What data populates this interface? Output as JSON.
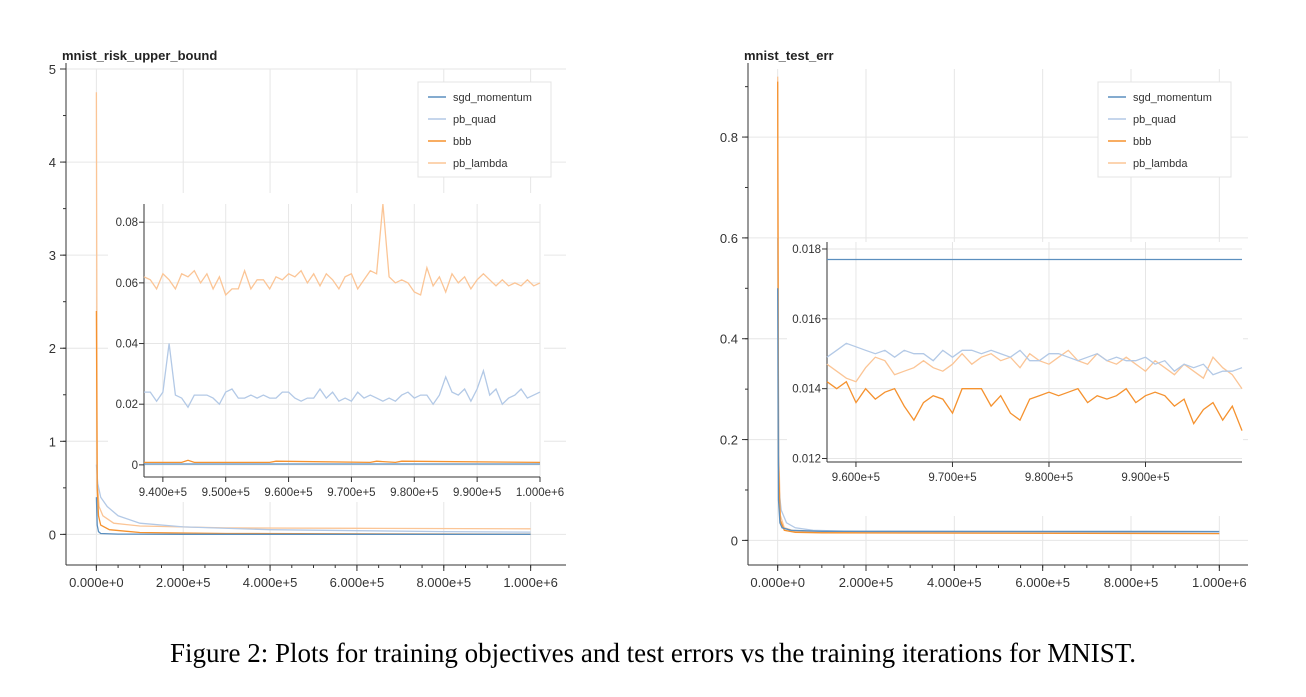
{
  "figure": {
    "caption": "Figure 2: Plots for training objectives and test errors vs the training iterations for MNIST."
  },
  "colors": {
    "sgd_momentum": "#5b8fbf",
    "pb_quad": "#b3c9e6",
    "bbb": "#f5922f",
    "pb_lambda": "#fbc596"
  },
  "chart_data": [
    {
      "type": "line",
      "title": "mnist_risk_upper_bound",
      "xlabel": "",
      "ylabel": "",
      "xlim": [
        -40000,
        1040000
      ],
      "ylim": [
        -0.2,
        5
      ],
      "xticks": [
        0,
        200000,
        400000,
        600000,
        800000,
        1000000
      ],
      "xtick_labels": [
        "0.000e+0",
        "2.000e+5",
        "4.000e+5",
        "6.000e+5",
        "8.000e+5",
        "1.000e+6"
      ],
      "yticks": [
        0,
        1,
        2,
        3,
        4,
        5
      ],
      "ytick_labels": [
        "0",
        "1",
        "2",
        "3",
        "4",
        "5"
      ],
      "grid": true,
      "legend": "top-right",
      "series": [
        {
          "name": "sgd_momentum",
          "x": [
            0,
            2000,
            5000,
            10000,
            50000,
            200000,
            1000000
          ],
          "y": [
            0.4,
            0.1,
            0.03,
            0.01,
            0.003,
            0.001,
            0.001
          ]
        },
        {
          "name": "pb_quad",
          "x": [
            0,
            3000,
            10000,
            25000,
            50000,
            100000,
            200000,
            400000,
            600000,
            800000,
            1000000
          ],
          "y": [
            0.75,
            0.55,
            0.4,
            0.3,
            0.2,
            0.12,
            0.08,
            0.05,
            0.04,
            0.03,
            0.025
          ]
        },
        {
          "name": "bbb",
          "x": [
            0,
            2000,
            5000,
            10000,
            30000,
            100000,
            300000,
            1000000
          ],
          "y": [
            2.4,
            0.5,
            0.2,
            0.1,
            0.05,
            0.02,
            0.01,
            0.002
          ]
        },
        {
          "name": "pb_lambda",
          "x": [
            0,
            2000,
            6000,
            15000,
            40000,
            100000,
            300000,
            600000,
            1000000
          ],
          "y": [
            4.75,
            0.6,
            0.3,
            0.2,
            0.12,
            0.09,
            0.07,
            0.065,
            0.06
          ]
        }
      ],
      "inset": {
        "xlim": [
          937000,
          1000000
        ],
        "ylim": [
          -0.004,
          0.086
        ],
        "xticks": [
          940000,
          950000,
          960000,
          970000,
          980000,
          990000,
          1000000
        ],
        "xtick_labels": [
          "9.400e+5",
          "9.500e+5",
          "9.600e+5",
          "9.700e+5",
          "9.800e+5",
          "9.900e+5",
          "1.000e+6"
        ],
        "yticks": [
          0,
          0.02,
          0.04,
          0.06,
          0.08
        ],
        "ytick_labels": [
          "0",
          "0.02",
          "0.04",
          "0.06",
          "0.08"
        ],
        "series": [
          {
            "name": "sgd_momentum",
            "x": [
              937000,
              1000000
            ],
            "y": [
              0.0003,
              0.0003
            ]
          },
          {
            "name": "pb_quad",
            "x": [
              937000,
              938000,
              939000,
              940000,
              941000,
              942000,
              943000,
              944000,
              945000,
              946000,
              947000,
              948000,
              949000,
              950000,
              951000,
              952000,
              953000,
              954000,
              955000,
              956000,
              957000,
              958000,
              959000,
              960000,
              961000,
              962000,
              963000,
              964000,
              965000,
              966000,
              967000,
              968000,
              969000,
              970000,
              971000,
              972000,
              973000,
              974000,
              975000,
              976000,
              977000,
              978000,
              979000,
              980000,
              981000,
              982000,
              983000,
              984000,
              985000,
              986000,
              987000,
              988000,
              989000,
              990000,
              991000,
              992000,
              993000,
              994000,
              995000,
              996000,
              997000,
              998000,
              999000,
              1000000
            ],
            "y": [
              0.024,
              0.024,
              0.021,
              0.024,
              0.04,
              0.023,
              0.022,
              0.019,
              0.023,
              0.023,
              0.023,
              0.022,
              0.02,
              0.024,
              0.025,
              0.022,
              0.022,
              0.023,
              0.022,
              0.023,
              0.022,
              0.022,
              0.024,
              0.024,
              0.022,
              0.021,
              0.022,
              0.022,
              0.025,
              0.022,
              0.024,
              0.021,
              0.022,
              0.021,
              0.024,
              0.022,
              0.023,
              0.022,
              0.021,
              0.022,
              0.021,
              0.023,
              0.024,
              0.022,
              0.023,
              0.023,
              0.02,
              0.023,
              0.029,
              0.024,
              0.023,
              0.025,
              0.021,
              0.025,
              0.031,
              0.023,
              0.025,
              0.02,
              0.022,
              0.023,
              0.025,
              0.022,
              0.023,
              0.024
            ]
          },
          {
            "name": "bbb",
            "x": [
              937000,
              943000,
              944000,
              945000,
              957000,
              958000,
              973000,
              974000,
              977000,
              978000,
              1000000
            ],
            "y": [
              0.0008,
              0.0008,
              0.0015,
              0.0008,
              0.0008,
              0.0012,
              0.0008,
              0.0012,
              0.0008,
              0.0012,
              0.0008
            ]
          },
          {
            "name": "pb_lambda",
            "x": [
              937000,
              938000,
              939000,
              940000,
              941000,
              942000,
              943000,
              944000,
              945000,
              946000,
              947000,
              948000,
              949000,
              950000,
              951000,
              952000,
              953000,
              954000,
              955000,
              956000,
              957000,
              958000,
              959000,
              960000,
              961000,
              962000,
              963000,
              964000,
              965000,
              966000,
              967000,
              968000,
              969000,
              970000,
              971000,
              972000,
              973000,
              974000,
              975000,
              976000,
              977000,
              978000,
              979000,
              980000,
              981000,
              982000,
              983000,
              984000,
              985000,
              986000,
              987000,
              988000,
              989000,
              990000,
              991000,
              992000,
              993000,
              994000,
              995000,
              996000,
              997000,
              998000,
              999000,
              1000000
            ],
            "y": [
              0.062,
              0.061,
              0.058,
              0.063,
              0.061,
              0.058,
              0.063,
              0.062,
              0.064,
              0.06,
              0.063,
              0.058,
              0.062,
              0.056,
              0.058,
              0.058,
              0.064,
              0.058,
              0.061,
              0.061,
              0.058,
              0.062,
              0.061,
              0.063,
              0.062,
              0.064,
              0.06,
              0.063,
              0.059,
              0.063,
              0.061,
              0.058,
              0.062,
              0.063,
              0.058,
              0.061,
              0.064,
              0.063,
              0.086,
              0.062,
              0.06,
              0.061,
              0.06,
              0.057,
              0.056,
              0.065,
              0.059,
              0.062,
              0.057,
              0.063,
              0.06,
              0.062,
              0.058,
              0.061,
              0.063,
              0.061,
              0.059,
              0.061,
              0.059,
              0.06,
              0.059,
              0.061,
              0.059,
              0.06
            ]
          }
        ]
      }
    },
    {
      "type": "line",
      "title": "mnist_test_err",
      "xlabel": "",
      "ylabel": "",
      "xlim": [
        -40000,
        1040000
      ],
      "ylim": [
        -0.025,
        0.935
      ],
      "xticks": [
        0,
        200000,
        400000,
        600000,
        800000,
        1000000
      ],
      "xtick_labels": [
        "0.000e+0",
        "2.000e+5",
        "4.000e+5",
        "6.000e+5",
        "8.000e+5",
        "1.000e+6"
      ],
      "yticks": [
        0,
        0.2,
        0.4,
        0.6,
        0.8
      ],
      "ytick_labels": [
        "0",
        "0.2",
        "0.4",
        "0.6",
        "0.8"
      ],
      "grid": true,
      "legend": "top-right",
      "series": [
        {
          "name": "sgd_momentum",
          "x": [
            0,
            2000,
            5000,
            10000,
            30000,
            100000,
            1000000
          ],
          "y": [
            0.5,
            0.08,
            0.035,
            0.025,
            0.02,
            0.018,
            0.0177
          ]
        },
        {
          "name": "pb_quad",
          "x": [
            0,
            3000,
            8000,
            20000,
            40000,
            80000,
            200000,
            1000000
          ],
          "y": [
            0.6,
            0.1,
            0.06,
            0.035,
            0.025,
            0.02,
            0.017,
            0.0147
          ]
        },
        {
          "name": "bbb",
          "x": [
            0,
            2000,
            6000,
            15000,
            40000,
            100000,
            1000000
          ],
          "y": [
            0.91,
            0.15,
            0.04,
            0.02,
            0.016,
            0.015,
            0.0135
          ]
        },
        {
          "name": "pb_lambda",
          "x": [
            0,
            2000,
            6000,
            15000,
            40000,
            100000,
            1000000
          ],
          "y": [
            0.92,
            0.2,
            0.05,
            0.025,
            0.018,
            0.016,
            0.0145
          ]
        }
      ],
      "inset": {
        "xlim": [
          957000,
          1000000
        ],
        "ylim": [
          0.0119,
          0.0182
        ],
        "xticks": [
          960000,
          970000,
          980000,
          990000
        ],
        "xtick_labels": [
          "9.600e+5",
          "9.700e+5",
          "9.800e+5",
          "9.900e+5"
        ],
        "yticks": [
          0.012,
          0.014,
          0.016,
          0.018
        ],
        "ytick_labels": [
          "0.012",
          "0.014",
          "0.016",
          "0.018"
        ],
        "series": [
          {
            "name": "sgd_momentum",
            "x": [
              957000,
              1000000
            ],
            "y": [
              0.0177,
              0.0177
            ]
          },
          {
            "name": "pb_quad",
            "x": [
              957000,
              958000,
              959000,
              960000,
              961000,
              962000,
              963000,
              964000,
              965000,
              966000,
              967000,
              968000,
              969000,
              970000,
              971000,
              972000,
              973000,
              974000,
              975000,
              976000,
              977000,
              978000,
              979000,
              980000,
              981000,
              982000,
              983000,
              984000,
              985000,
              986000,
              987000,
              988000,
              989000,
              990000,
              991000,
              992000,
              993000,
              994000,
              995000,
              996000,
              997000,
              998000,
              999000,
              1000000
            ],
            "y": [
              0.0149,
              0.0151,
              0.0153,
              0.0152,
              0.0151,
              0.015,
              0.0151,
              0.0149,
              0.0151,
              0.015,
              0.015,
              0.0148,
              0.0151,
              0.0149,
              0.0151,
              0.0151,
              0.015,
              0.0151,
              0.015,
              0.0149,
              0.0151,
              0.0148,
              0.0148,
              0.015,
              0.015,
              0.0149,
              0.0148,
              0.0149,
              0.015,
              0.0148,
              0.0149,
              0.0148,
              0.0148,
              0.0149,
              0.0147,
              0.0148,
              0.0145,
              0.0147,
              0.0146,
              0.0147,
              0.0144,
              0.0145,
              0.0145,
              0.0146
            ]
          },
          {
            "name": "bbb",
            "x": [
              957000,
              958000,
              959000,
              960000,
              961000,
              962000,
              963000,
              964000,
              965000,
              966000,
              967000,
              968000,
              969000,
              970000,
              971000,
              972000,
              973000,
              974000,
              975000,
              976000,
              977000,
              978000,
              979000,
              980000,
              981000,
              982000,
              983000,
              984000,
              985000,
              986000,
              987000,
              988000,
              989000,
              990000,
              991000,
              992000,
              993000,
              994000,
              995000,
              996000,
              997000,
              998000,
              999000,
              1000000
            ],
            "y": [
              0.0142,
              0.014,
              0.0142,
              0.0136,
              0.014,
              0.0137,
              0.0139,
              0.014,
              0.0135,
              0.0131,
              0.0136,
              0.0138,
              0.0137,
              0.0133,
              0.014,
              0.014,
              0.014,
              0.0135,
              0.0138,
              0.0133,
              0.0131,
              0.0137,
              0.0138,
              0.0139,
              0.0138,
              0.0139,
              0.014,
              0.0136,
              0.0138,
              0.0137,
              0.0138,
              0.014,
              0.0136,
              0.0138,
              0.0139,
              0.0138,
              0.0135,
              0.0137,
              0.013,
              0.0134,
              0.0136,
              0.0131,
              0.0135,
              0.0128
            ]
          },
          {
            "name": "pb_lambda",
            "x": [
              957000,
              958000,
              959000,
              960000,
              961000,
              962000,
              963000,
              964000,
              965000,
              966000,
              967000,
              968000,
              969000,
              970000,
              971000,
              972000,
              973000,
              974000,
              975000,
              976000,
              977000,
              978000,
              979000,
              980000,
              981000,
              982000,
              983000,
              984000,
              985000,
              986000,
              987000,
              988000,
              989000,
              990000,
              991000,
              992000,
              993000,
              994000,
              995000,
              996000,
              997000,
              998000,
              999000,
              1000000
            ],
            "y": [
              0.0147,
              0.0145,
              0.0143,
              0.0142,
              0.0146,
              0.0149,
              0.0148,
              0.0144,
              0.0145,
              0.0146,
              0.0148,
              0.0146,
              0.0145,
              0.0147,
              0.015,
              0.0147,
              0.0149,
              0.015,
              0.0148,
              0.0149,
              0.0146,
              0.015,
              0.0148,
              0.0147,
              0.0149,
              0.0151,
              0.0148,
              0.0147,
              0.015,
              0.0148,
              0.0147,
              0.0149,
              0.0147,
              0.0145,
              0.0148,
              0.0146,
              0.0144,
              0.0147,
              0.0145,
              0.0143,
              0.0149,
              0.0146,
              0.0144,
              0.014
            ]
          }
        ]
      }
    }
  ]
}
